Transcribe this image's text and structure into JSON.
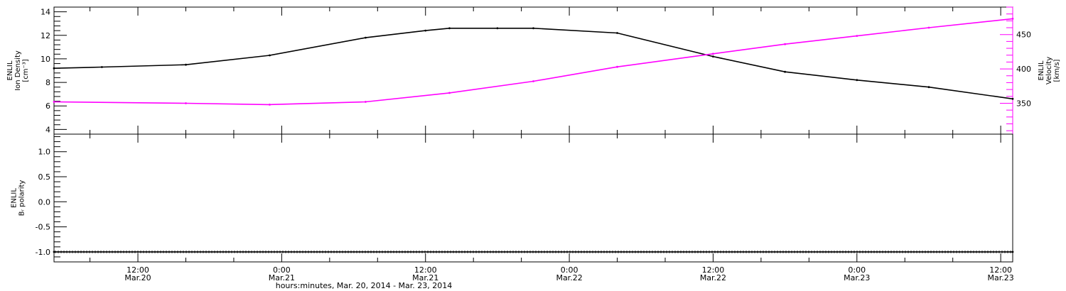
{
  "colors": {
    "density": "#000000",
    "velocity": "#ff00ff",
    "frame": "#000000",
    "background": "#ffffff"
  },
  "chart_data": [
    {
      "type": "line",
      "panel": "top",
      "y_left": {
        "label_lines": [
          "ENLIL",
          "Ion Density",
          "[cm⁻³]"
        ],
        "ylim": [
          3.6,
          14.4
        ],
        "ticks": [
          "4",
          "6",
          "8",
          "10",
          "12",
          "14"
        ],
        "tick_values": [
          4,
          6,
          8,
          10,
          12,
          14
        ]
      },
      "y_right": {
        "label_lines": [
          "ENLIL",
          "Velocity",
          "[km/s]"
        ],
        "ylim": [
          305,
          490
        ],
        "ticks": [
          "350",
          "400",
          "450"
        ],
        "tick_values": [
          350,
          400,
          450
        ]
      },
      "series": [
        {
          "name": "",
          "axis": "left",
          "x": [
            "2014-03-20 05:00",
            "2014-03-20 09:00",
            "2014-03-20 16:00",
            "2014-03-20 23:00",
            "2014-03-21 07:00",
            "2014-03-21 12:00",
            "2014-03-21 14:00",
            "2014-03-21 18:00",
            "2014-03-21 21:00",
            "2014-03-22 04:00",
            "2014-03-22 12:00",
            "2014-03-22 18:00",
            "2014-03-23 00:00",
            "2014-03-23 06:00",
            "2014-03-23 13:00"
          ],
          "y": [
            9.2,
            9.3,
            9.5,
            10.3,
            11.8,
            12.4,
            12.6,
            12.6,
            12.6,
            12.2,
            10.2,
            8.9,
            8.2,
            7.6,
            6.6
          ]
        },
        {
          "name": "",
          "axis": "right",
          "x": [
            "2014-03-20 05:00",
            "2014-03-20 16:00",
            "2014-03-20 23:00",
            "2014-03-21 07:00",
            "2014-03-21 14:00",
            "2014-03-21 21:00",
            "2014-03-22 04:00",
            "2014-03-22 12:00",
            "2014-03-22 18:00",
            "2014-03-23 00:00",
            "2014-03-23 06:00",
            "2014-03-23 13:00"
          ],
          "y": [
            352,
            350,
            348,
            352,
            365,
            382,
            403,
            422,
            436,
            448,
            460,
            473
          ]
        }
      ]
    },
    {
      "type": "line",
      "panel": "bottom",
      "y_left": {
        "label_lines": [
          "ENLIL",
          "Bᵣ polarity"
        ],
        "ylim": [
          -1.2,
          1.35
        ],
        "ticks": [
          "-1.0",
          "-0.5",
          "0.0",
          "0.5",
          "1.0"
        ],
        "tick_values": [
          -1.0,
          -0.5,
          0.0,
          0.5,
          1.0
        ]
      },
      "series": [
        {
          "name": "",
          "x": [
            "2014-03-20 05:00",
            "2014-03-23 13:00"
          ],
          "y": [
            -1.0,
            -1.0
          ]
        }
      ]
    }
  ],
  "x_axis": {
    "start": "2014-03-20 05:00",
    "end": "2014-03-23 13:00",
    "tick_labels": [
      {
        "time": "12:00",
        "date": "Mar.20",
        "at": "2014-03-20 12:00"
      },
      {
        "time": "0:00",
        "date": "Mar.21",
        "at": "2014-03-21 00:00"
      },
      {
        "time": "12:00",
        "date": "Mar.21",
        "at": "2014-03-21 12:00"
      },
      {
        "time": "0:00",
        "date": "Mar.22",
        "at": "2014-03-22 00:00"
      },
      {
        "time": "12:00",
        "date": "Mar.22",
        "at": "2014-03-22 12:00"
      },
      {
        "time": "0:00",
        "date": "Mar.23",
        "at": "2014-03-23 00:00"
      },
      {
        "time": "12:00",
        "date": "Mar.23",
        "at": "2014-03-23 12:00"
      }
    ],
    "label": "hours:minutes, Mar. 20, 2014 - Mar. 23, 2014"
  }
}
